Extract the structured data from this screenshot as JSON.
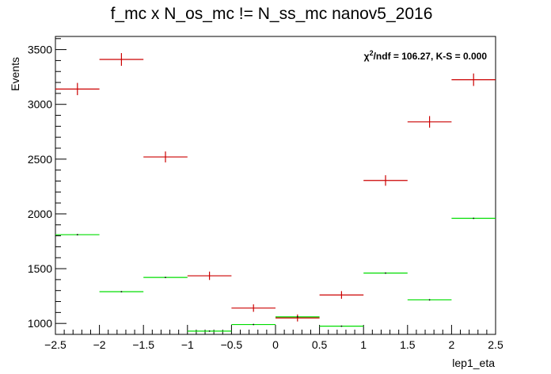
{
  "chart_data": {
    "type": "histogram",
    "title": "f_mc x N_os_mc != N_ss_mc nanov5_2016",
    "xlabel": "lep1_eta",
    "ylabel": "Events",
    "xlim": [
      -2.5,
      2.5
    ],
    "ylim": [
      900,
      3620
    ],
    "x_ticks": [
      -2.5,
      -2,
      -1.5,
      -1,
      -0.5,
      0,
      0.5,
      1,
      1.5,
      2,
      2.5
    ],
    "x_tick_labels": [
      "−2.5",
      "−2",
      "−1.5",
      "−1",
      "−0.5",
      "0",
      "0.5",
      "1",
      "1.5",
      "2",
      "2.5"
    ],
    "y_ticks": [
      1000,
      1500,
      2000,
      2500,
      3000,
      3500
    ],
    "y_tick_labels": [
      "1000",
      "1500",
      "2000",
      "2500",
      "3000",
      "3500"
    ],
    "bin_edges": [
      -2.5,
      -2,
      -1.5,
      -1,
      -0.5,
      0,
      0.5,
      1,
      1.5,
      2,
      2.5
    ],
    "series": [
      {
        "name": "red",
        "color": "#cc0000",
        "values": [
          3140,
          3410,
          2520,
          1435,
          1140,
          1050,
          1260,
          2305,
          2840,
          3225
        ],
        "errors": [
          56,
          58,
          50,
          38,
          34,
          32,
          35,
          48,
          53,
          57
        ]
      },
      {
        "name": "green",
        "color": "#00dd00",
        "values": [
          1810,
          1290,
          1420,
          930,
          990,
          1060,
          975,
          1460,
          1215,
          1960
        ],
        "errors": [
          0,
          0,
          0,
          0,
          0,
          0,
          0,
          0,
          0,
          0
        ]
      }
    ],
    "stats_text": {
      "chi2_symbol": "χ",
      "chi2_sup": "2",
      "chi2_rest": "/ndf = 106.27,   K-S = 0.000"
    }
  }
}
